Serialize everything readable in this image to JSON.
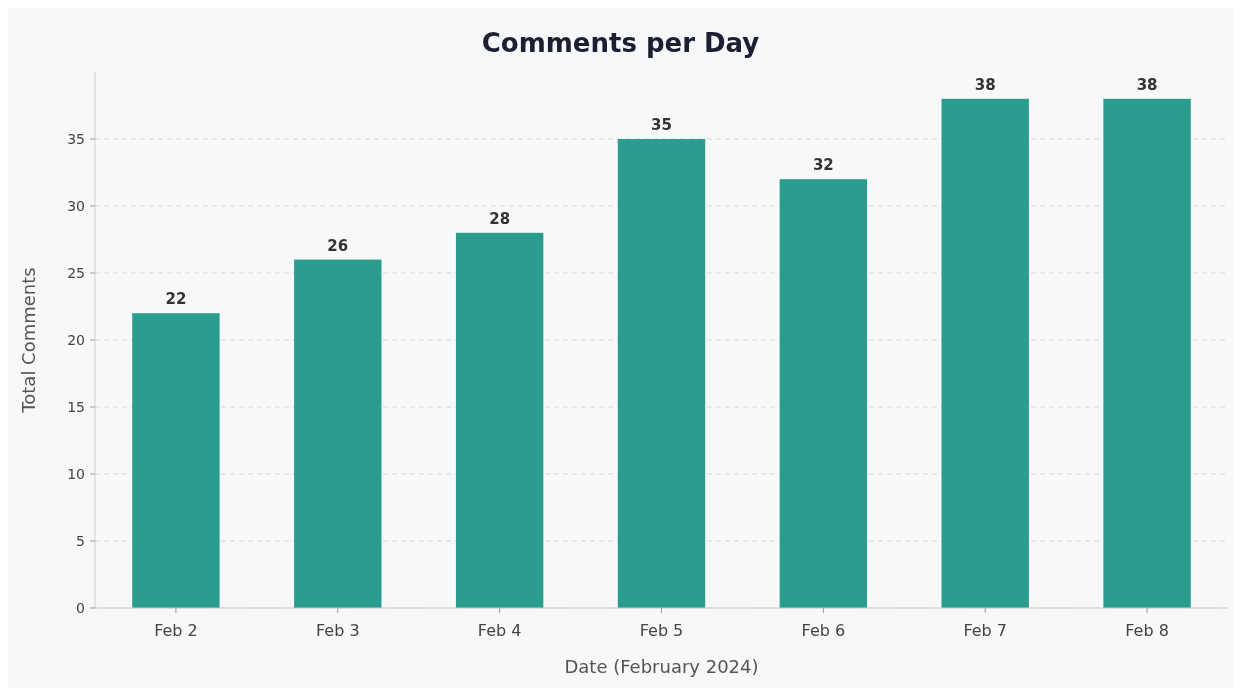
{
  "chart_data": {
    "type": "bar",
    "title": "Comments per Day",
    "xlabel": "Date (February 2024)",
    "ylabel": "Total Comments",
    "categories": [
      "Feb 2",
      "Feb 3",
      "Feb 4",
      "Feb 5",
      "Feb 6",
      "Feb 7",
      "Feb 8"
    ],
    "values": [
      22,
      26,
      28,
      35,
      32,
      38,
      38
    ],
    "color": "#2a9d8f",
    "ylim": [
      0,
      40
    ],
    "yticks": [
      0,
      5,
      10,
      15,
      20,
      25,
      30,
      35
    ],
    "grid": "y",
    "data_labels": true
  }
}
